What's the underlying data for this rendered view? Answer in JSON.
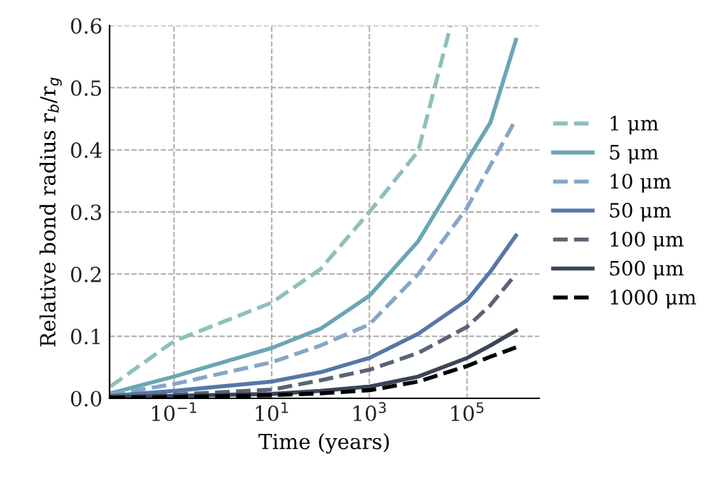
{
  "chart_data": {
    "type": "line",
    "xlabel": "Time (years)",
    "ylabel": "Relative bond radius r$_{b}$/r$_{g}$",
    "log": "x",
    "grid": true,
    "legend": "right",
    "x": [
      0.005,
      0.1,
      10,
      100,
      1000,
      10000,
      100000,
      300000,
      1000000
    ],
    "xlim": [
      0.0048,
      3000000
    ],
    "ylim": [
      0,
      0.6
    ],
    "xticks": [
      {
        "value": 0.1,
        "label": "10$^{−1}$"
      },
      {
        "value": 10,
        "label": "10$^{1}$"
      },
      {
        "value": 1000,
        "label": "10$^{3}$"
      },
      {
        "value": 100000,
        "label": "10$^{5}$"
      }
    ],
    "yticks": [
      {
        "value": 0,
        "label": "0.0"
      },
      0.1,
      0.2,
      0.3,
      0.4,
      0.5,
      0.6
    ],
    "series": [
      {
        "name": "1 μm",
        "color": "#8fbfbd",
        "line_style": "dashed",
        "x": [
          0.005,
          0.1,
          10,
          100,
          1000,
          10000,
          46000
        ],
        "values": [
          0.019,
          0.092,
          0.154,
          0.208,
          0.3,
          0.398,
          0.6
        ]
      },
      {
        "name": "5 μm",
        "color": "#6aa6b4",
        "line_style": "solid",
        "values": [
          0.008,
          0.035,
          0.081,
          0.112,
          0.165,
          0.253,
          0.383,
          0.444,
          0.577
        ]
      },
      {
        "name": "10 μm",
        "color": "#86a6c8",
        "line_style": "dashed",
        "values": [
          0.006,
          0.023,
          0.058,
          0.085,
          0.119,
          0.2,
          0.307,
          0.375,
          0.449
        ]
      },
      {
        "name": "50 μm",
        "color": "#5578a8",
        "line_style": "solid",
        "values": [
          0.004,
          0.012,
          0.027,
          0.042,
          0.065,
          0.104,
          0.158,
          0.204,
          0.262
        ]
      },
      {
        "name": "100 μm",
        "color": "#5a6478",
        "line_style": "dashed",
        "values": [
          0.003,
          0.006,
          0.014,
          0.029,
          0.046,
          0.073,
          0.115,
          0.15,
          0.2
        ]
      },
      {
        "name": "500 μm",
        "color": "#3c4558",
        "line_style": "solid",
        "values": [
          0.002,
          0.004,
          0.007,
          0.012,
          0.019,
          0.035,
          0.065,
          0.085,
          0.109
        ]
      },
      {
        "name": "1000 μm",
        "color": "#000000",
        "line_style": "dashed",
        "values": [
          0.001,
          0.002,
          0.005,
          0.008,
          0.013,
          0.027,
          0.052,
          0.067,
          0.082
        ]
      }
    ]
  }
}
